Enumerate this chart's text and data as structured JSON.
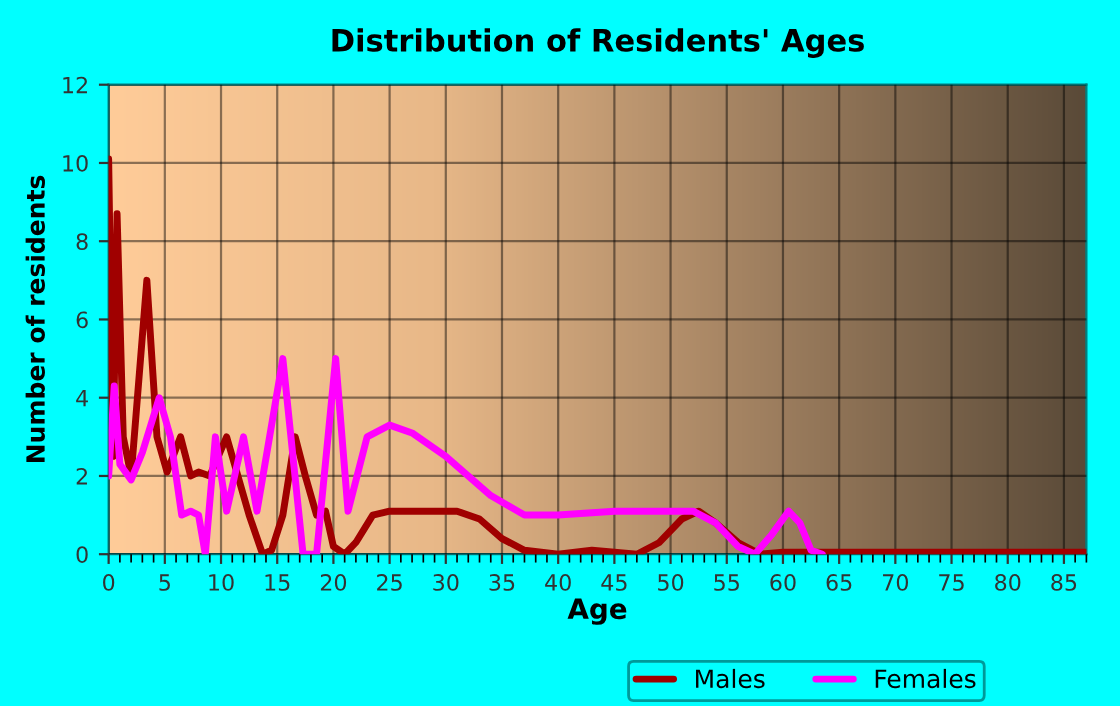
{
  "chart_data": {
    "type": "line",
    "title": "Distribution of Residents' Ages",
    "xlabel": "Age",
    "ylabel": "Number of residents",
    "xlim": [
      0,
      87
    ],
    "xticks": [
      0,
      5,
      10,
      15,
      20,
      25,
      30,
      35,
      40,
      45,
      50,
      55,
      60,
      65,
      70,
      75,
      80,
      85
    ],
    "ylim": [
      0,
      12
    ],
    "yticks": [
      0,
      2,
      4,
      6,
      8,
      10,
      12
    ],
    "grid": true,
    "legend": "bottom",
    "marker": "none",
    "line_style": "solid",
    "series": [
      {
        "name": "Males",
        "color": "#a00000",
        "x": [
          0,
          0.4,
          0.75,
          1.3,
          2,
          3.4,
          4.3,
          5.2,
          6.4,
          7.3,
          8,
          9,
          10.5,
          11.5,
          12.5,
          13.7,
          14.5,
          15.5,
          16.6,
          17.5,
          18.5,
          19.3,
          20,
          21,
          22,
          23.5,
          25,
          28,
          31,
          33,
          35,
          37,
          40,
          43,
          47,
          49,
          51,
          52.5,
          54,
          56,
          58,
          60,
          65,
          70,
          75,
          80,
          87
        ],
        "values": [
          10.1,
          2.5,
          8.7,
          3,
          2,
          7,
          3,
          2.1,
          3,
          2,
          2.1,
          2,
          3,
          2,
          1,
          0,
          0.1,
          1,
          3,
          2,
          1,
          1.1,
          0.2,
          0,
          0.3,
          1,
          1.1,
          1.1,
          1.1,
          0.9,
          0.4,
          0.1,
          0,
          0.1,
          0,
          0.3,
          0.9,
          1.1,
          0.8,
          0.3,
          0,
          0.05,
          0.05,
          0.05,
          0.05,
          0.05,
          0.05
        ]
      },
      {
        "name": "Females",
        "color": "#ff00ff",
        "x": [
          0,
          0.5,
          1,
          2,
          3,
          4.5,
          5.5,
          6.5,
          7.3,
          8,
          8.6,
          9.5,
          10.5,
          12,
          13.2,
          15.5,
          17.3,
          18.5,
          20.2,
          21.3,
          23,
          25,
          27,
          30,
          34,
          37,
          40,
          45,
          50,
          52,
          54,
          56,
          57.5,
          59,
          60.5,
          61.5,
          62.5,
          63.5
        ],
        "values": [
          2,
          4.3,
          2.3,
          1.9,
          2.6,
          4,
          3,
          1,
          1.1,
          1,
          0,
          3,
          1.1,
          3,
          1.1,
          5,
          0,
          0,
          5,
          1.1,
          3,
          3.3,
          3.1,
          2.5,
          1.5,
          1,
          1,
          1.1,
          1.1,
          1.1,
          0.8,
          0.2,
          0,
          0.5,
          1.1,
          0.8,
          0.1,
          0
        ]
      }
    ]
  }
}
